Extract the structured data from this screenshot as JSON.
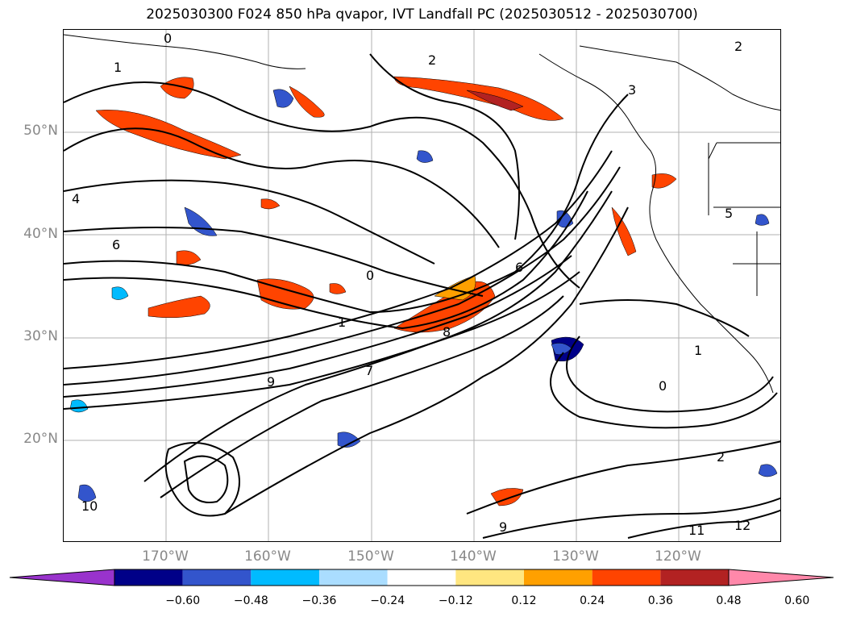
{
  "title": "2025030300 F024 850 hPa qvapor, IVT Landfall PC (2025030512 - 2025030700)",
  "lat_labels": [
    "50°N",
    "40°N",
    "30°N",
    "20°N"
  ],
  "lon_labels": [
    "170°W",
    "160°W",
    "150°W",
    "140°W",
    "130°W",
    "120°W"
  ],
  "colorbar": {
    "colors": [
      "#9933cc",
      "#000088",
      "#3355cc",
      "#00bbff",
      "#aaddff",
      "#ffffff",
      "#ffe680",
      "#ffa000",
      "#ff4400",
      "#b22222",
      "#ff88aa"
    ],
    "ticks": [
      "−0.60",
      "−0.48",
      "−0.36",
      "−0.24",
      "−0.12",
      "0.12",
      "0.24",
      "0.36",
      "0.48",
      "0.60"
    ],
    "extend": "both"
  },
  "contour_labels": [
    "0",
    "1",
    "2",
    "3",
    "4",
    "5",
    "6",
    "7",
    "8",
    "9",
    "10",
    "11",
    "12"
  ],
  "map_features": {
    "grid": true,
    "coastlines": true,
    "state_borders": true
  }
}
